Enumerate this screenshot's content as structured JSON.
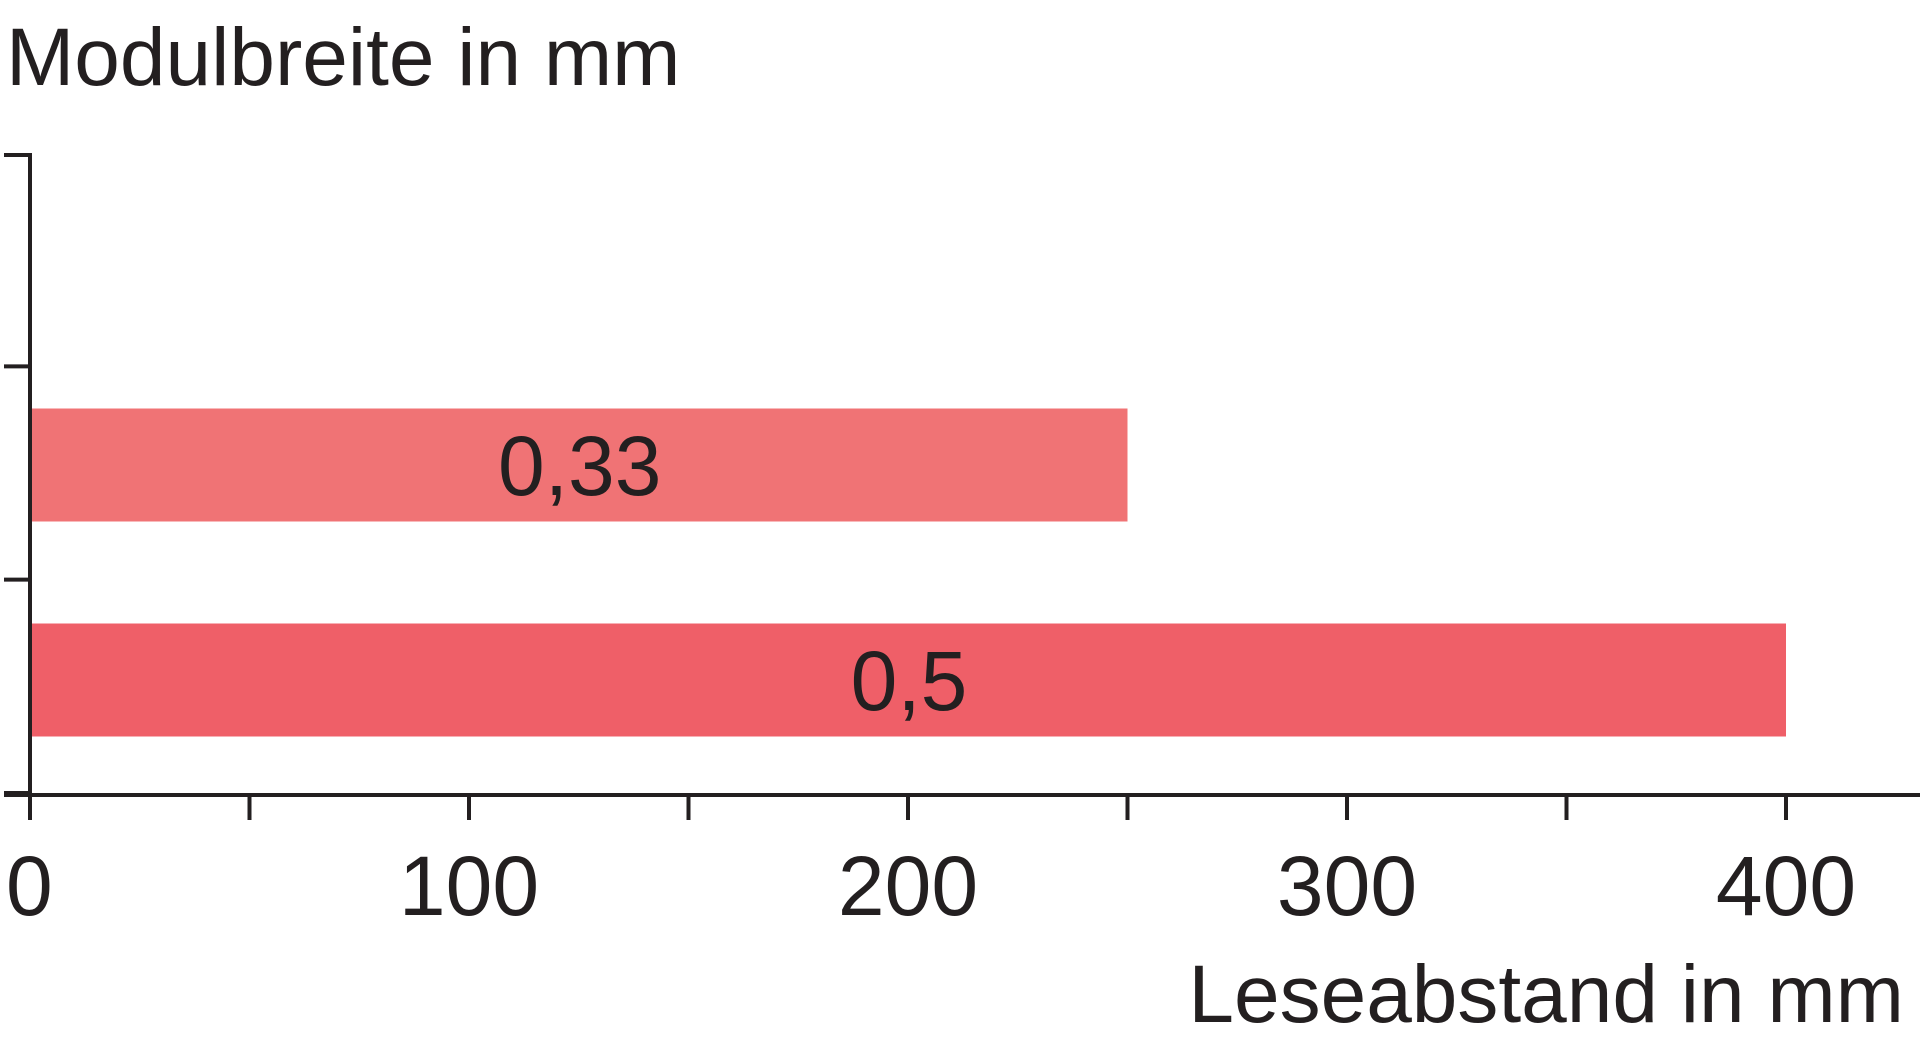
{
  "chart_data": {
    "type": "bar",
    "orientation": "horizontal",
    "title": "",
    "ylabel": "Modulbreite in mm",
    "xlabel": "Leseabstand in mm",
    "categories": [
      "0,33",
      "0,5"
    ],
    "values": [
      250,
      400
    ],
    "bar_labels": [
      "0,33",
      "0,5"
    ],
    "colors": [
      "#f07375",
      "#ef5f68"
    ],
    "xlim": [
      0,
      430
    ],
    "xticks": [
      0,
      100,
      200,
      300,
      400
    ],
    "xtick_labels": [
      "0",
      "100",
      "200",
      "300",
      "400"
    ],
    "x_minor_ticks": [
      50,
      150,
      250,
      350
    ],
    "y_tick_count": 4,
    "grid": false,
    "legend": "none"
  }
}
